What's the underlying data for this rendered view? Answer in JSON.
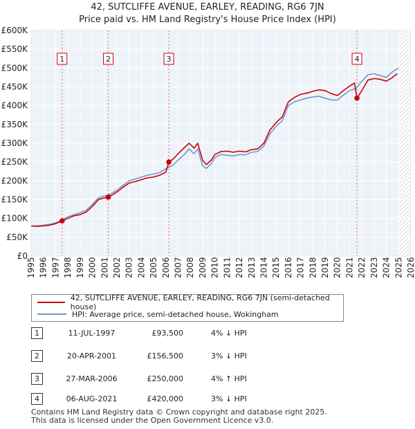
{
  "title": {
    "line1": "42, SUTCLIFFE AVENUE, EARLEY, READING, RG6 7JN",
    "line2": "Price paid vs. HM Land Registry's House Price Index (HPI)"
  },
  "chart_data": {
    "type": "line",
    "title": "42, SUTCLIFFE AVENUE, EARLEY, READING, RG6 7JN — Price paid vs. HM Land Registry's House Price Index (HPI)",
    "xlabel": "",
    "ylabel": "",
    "xlim": [
      1995,
      2026
    ],
    "ylim": [
      0,
      600000
    ],
    "y_ticks": [
      {
        "value": 0,
        "label": "£0"
      },
      {
        "value": 50000,
        "label": "£50K"
      },
      {
        "value": 100000,
        "label": "£100K"
      },
      {
        "value": 150000,
        "label": "£150K"
      },
      {
        "value": 200000,
        "label": "£200K"
      },
      {
        "value": 250000,
        "label": "£250K"
      },
      {
        "value": 300000,
        "label": "£300K"
      },
      {
        "value": 350000,
        "label": "£350K"
      },
      {
        "value": 400000,
        "label": "£400K"
      },
      {
        "value": 450000,
        "label": "£450K"
      },
      {
        "value": 500000,
        "label": "£500K"
      },
      {
        "value": 550000,
        "label": "£550K"
      },
      {
        "value": 600000,
        "label": "£600K"
      }
    ],
    "x_ticks": [
      "1995",
      "1996",
      "1997",
      "1998",
      "1999",
      "2000",
      "2001",
      "2002",
      "2003",
      "2004",
      "2005",
      "2006",
      "2007",
      "2008",
      "2009",
      "2010",
      "2011",
      "2012",
      "2013",
      "2014",
      "2015",
      "2016",
      "2017",
      "2018",
      "2019",
      "2020",
      "2021",
      "2022",
      "2023",
      "2024",
      "2025",
      "2026"
    ],
    "grid": true,
    "forecast_start": 2025.0,
    "series": [
      {
        "name": "42, SUTCLIFFE AVENUE, EARLEY, READING, RG6 7JN (semi-detached house)",
        "color": "#cc0000",
        "points": [
          [
            1995.0,
            80000
          ],
          [
            1995.5,
            79000
          ],
          [
            1996.0,
            80000
          ],
          [
            1996.5,
            82000
          ],
          [
            1997.0,
            86000
          ],
          [
            1997.53,
            93500
          ],
          [
            1998.0,
            100000
          ],
          [
            1998.5,
            107000
          ],
          [
            1999.0,
            110000
          ],
          [
            1999.5,
            117000
          ],
          [
            2000.0,
            132000
          ],
          [
            2000.5,
            150000
          ],
          [
            2001.0,
            155000
          ],
          [
            2001.3,
            156500
          ],
          [
            2001.6,
            162000
          ],
          [
            2002.0,
            170000
          ],
          [
            2002.5,
            183000
          ],
          [
            2003.0,
            194000
          ],
          [
            2003.5,
            198000
          ],
          [
            2004.0,
            203000
          ],
          [
            2004.5,
            208000
          ],
          [
            2005.0,
            210000
          ],
          [
            2005.5,
            215000
          ],
          [
            2006.0,
            223000
          ],
          [
            2006.24,
            250000
          ],
          [
            2006.6,
            258000
          ],
          [
            2007.0,
            272000
          ],
          [
            2007.5,
            288000
          ],
          [
            2007.9,
            300000
          ],
          [
            2008.3,
            287000
          ],
          [
            2008.6,
            300000
          ],
          [
            2009.0,
            255000
          ],
          [
            2009.3,
            243000
          ],
          [
            2009.7,
            255000
          ],
          [
            2010.0,
            270000
          ],
          [
            2010.5,
            278000
          ],
          [
            2011.0,
            279000
          ],
          [
            2011.5,
            276000
          ],
          [
            2012.0,
            279000
          ],
          [
            2012.5,
            277000
          ],
          [
            2013.0,
            283000
          ],
          [
            2013.5,
            285000
          ],
          [
            2014.0,
            300000
          ],
          [
            2014.5,
            335000
          ],
          [
            2015.0,
            355000
          ],
          [
            2015.5,
            370000
          ],
          [
            2016.0,
            410000
          ],
          [
            2016.5,
            422000
          ],
          [
            2017.0,
            430000
          ],
          [
            2017.5,
            433000
          ],
          [
            2018.0,
            438000
          ],
          [
            2018.5,
            442000
          ],
          [
            2019.0,
            440000
          ],
          [
            2019.5,
            432000
          ],
          [
            2020.0,
            427000
          ],
          [
            2020.5,
            440000
          ],
          [
            2021.0,
            452000
          ],
          [
            2021.4,
            460000
          ],
          [
            2021.6,
            420000
          ],
          [
            2022.0,
            440000
          ],
          [
            2022.5,
            468000
          ],
          [
            2023.0,
            472000
          ],
          [
            2023.5,
            470000
          ],
          [
            2024.0,
            465000
          ],
          [
            2024.5,
            475000
          ],
          [
            2024.9,
            485000
          ]
        ]
      },
      {
        "name": "HPI: Average price, semi-detached house, Wokingham",
        "color": "#6f97c8",
        "points": [
          [
            1995.0,
            80000
          ],
          [
            1995.5,
            80000
          ],
          [
            1996.0,
            82000
          ],
          [
            1996.5,
            84000
          ],
          [
            1997.0,
            88000
          ],
          [
            1997.5,
            96000
          ],
          [
            1998.0,
            104000
          ],
          [
            1998.5,
            110000
          ],
          [
            1999.0,
            115000
          ],
          [
            1999.5,
            122000
          ],
          [
            2000.0,
            137000
          ],
          [
            2000.5,
            155000
          ],
          [
            2001.0,
            160000
          ],
          [
            2001.5,
            165000
          ],
          [
            2002.0,
            175000
          ],
          [
            2002.5,
            188000
          ],
          [
            2003.0,
            200000
          ],
          [
            2003.5,
            205000
          ],
          [
            2004.0,
            210000
          ],
          [
            2004.5,
            215000
          ],
          [
            2005.0,
            218000
          ],
          [
            2005.5,
            222000
          ],
          [
            2006.0,
            232000
          ],
          [
            2006.5,
            240000
          ],
          [
            2007.0,
            255000
          ],
          [
            2007.5,
            270000
          ],
          [
            2007.9,
            285000
          ],
          [
            2008.3,
            272000
          ],
          [
            2008.6,
            285000
          ],
          [
            2009.0,
            240000
          ],
          [
            2009.3,
            233000
          ],
          [
            2009.7,
            245000
          ],
          [
            2010.0,
            262000
          ],
          [
            2010.5,
            270000
          ],
          [
            2011.0,
            268000
          ],
          [
            2011.5,
            266000
          ],
          [
            2012.0,
            270000
          ],
          [
            2012.5,
            269000
          ],
          [
            2013.0,
            276000
          ],
          [
            2013.5,
            278000
          ],
          [
            2014.0,
            292000
          ],
          [
            2014.5,
            325000
          ],
          [
            2015.0,
            345000
          ],
          [
            2015.5,
            360000
          ],
          [
            2016.0,
            400000
          ],
          [
            2016.5,
            410000
          ],
          [
            2017.0,
            415000
          ],
          [
            2017.5,
            420000
          ],
          [
            2018.0,
            423000
          ],
          [
            2018.5,
            425000
          ],
          [
            2019.0,
            420000
          ],
          [
            2019.5,
            415000
          ],
          [
            2020.0,
            415000
          ],
          [
            2020.5,
            428000
          ],
          [
            2021.0,
            440000
          ],
          [
            2021.5,
            445000
          ],
          [
            2022.0,
            465000
          ],
          [
            2022.5,
            482000
          ],
          [
            2023.0,
            485000
          ],
          [
            2023.5,
            480000
          ],
          [
            2024.0,
            475000
          ],
          [
            2024.5,
            490000
          ],
          [
            2025.0,
            500000
          ]
        ]
      }
    ],
    "sales": [
      {
        "label": "1",
        "x": 1997.53,
        "price": 93500
      },
      {
        "label": "2",
        "x": 2001.3,
        "price": 156500
      },
      {
        "label": "3",
        "x": 2006.24,
        "price": 250000
      },
      {
        "label": "4",
        "x": 2021.6,
        "price": 420000
      }
    ]
  },
  "legend": {
    "property_label": "42, SUTCLIFFE AVENUE, EARLEY, READING, RG6 7JN (semi-detached house)",
    "hpi_label": "HPI: Average price, semi-detached house, Wokingham"
  },
  "transactions": [
    {
      "num": "1",
      "date": "11-JUL-1997",
      "price": "£93,500",
      "hpi": "4% ↓ HPI"
    },
    {
      "num": "2",
      "date": "20-APR-2001",
      "price": "£156,500",
      "hpi": "3% ↓ HPI"
    },
    {
      "num": "3",
      "date": "27-MAR-2006",
      "price": "£250,000",
      "hpi": "4% ↑ HPI"
    },
    {
      "num": "4",
      "date": "06-AUG-2021",
      "price": "£420,000",
      "hpi": "3% ↓ HPI"
    }
  ],
  "footer": {
    "line1": "Contains HM Land Registry data © Crown copyright and database right 2025.",
    "line2": "This data is licensed under the Open Government Licence v3.0."
  },
  "colors": {
    "property_line": "#cc0000",
    "hpi_line": "#6f97c8",
    "plot_background": "#eef2f9",
    "grid": "#ffffff"
  }
}
